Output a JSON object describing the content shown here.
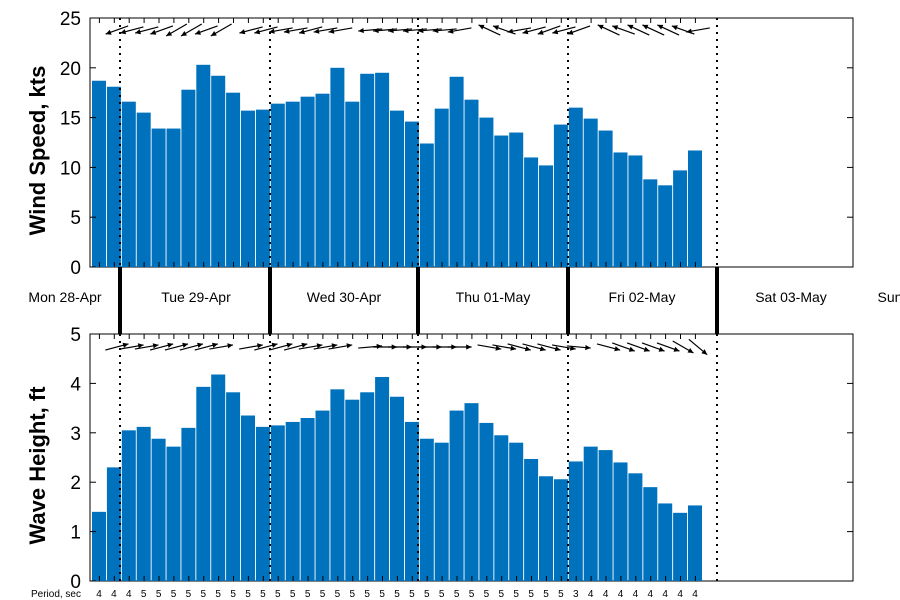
{
  "chart_data": [
    {
      "type": "bar",
      "ylabel": "Wind Speed, kts",
      "ylim": [
        0,
        25
      ],
      "yticks": [
        0,
        5,
        10,
        15,
        20,
        25
      ],
      "grid": false,
      "bar_color": "#0072bd",
      "values": [
        18.7,
        18.1,
        16.6,
        15.5,
        13.9,
        13.9,
        17.8,
        20.3,
        19.2,
        17.5,
        15.7,
        15.8,
        16.4,
        16.6,
        17.1,
        17.4,
        20.0,
        16.6,
        19.4,
        19.5,
        15.7,
        14.6,
        12.4,
        15.9,
        19.1,
        16.8,
        15.0,
        13.2,
        13.5,
        11.0,
        10.2,
        14.3,
        16.0,
        14.9,
        13.7,
        11.5,
        11.2,
        8.8,
        8.2,
        9.7,
        11.7
      ],
      "direction_arrows_deg": [
        null,
        200,
        195,
        195,
        200,
        210,
        210,
        200,
        210,
        null,
        195,
        195,
        190,
        190,
        195,
        190,
        190,
        null,
        185,
        185,
        185,
        185,
        185,
        185,
        190,
        null,
        155,
        160,
        190,
        195,
        200,
        195,
        200,
        null,
        155,
        160,
        155,
        155,
        155,
        160,
        190
      ]
    },
    {
      "type": "bar",
      "ylabel": "Wave Height, ft",
      "ylim": [
        0,
        5
      ],
      "yticks": [
        0,
        1,
        2,
        3,
        4,
        5
      ],
      "grid": false,
      "bar_color": "#0072bd",
      "values": [
        1.4,
        2.3,
        3.05,
        3.12,
        2.88,
        2.72,
        3.1,
        3.93,
        4.18,
        3.82,
        3.35,
        3.12,
        3.15,
        3.22,
        3.3,
        3.45,
        3.88,
        3.67,
        3.82,
        4.13,
        3.73,
        3.22,
        2.88,
        2.8,
        3.45,
        3.6,
        3.2,
        2.95,
        2.8,
        2.47,
        2.12,
        2.06,
        2.42,
        2.72,
        2.65,
        2.4,
        2.18,
        1.9,
        1.57,
        1.38,
        1.53
      ],
      "direction_arrows_deg": [
        null,
        15,
        10,
        10,
        15,
        15,
        15,
        15,
        10,
        null,
        10,
        15,
        15,
        15,
        10,
        10,
        10,
        null,
        5,
        0,
        0,
        0,
        0,
        0,
        0,
        null,
        -10,
        -10,
        -15,
        -15,
        -15,
        -10,
        -5,
        null,
        -15,
        -20,
        -20,
        -20,
        -20,
        -30,
        -40
      ]
    }
  ],
  "days": [
    "Mon 28-Apr",
    "Tue 29-Apr",
    "Wed 30-Apr",
    "Thu 01-May",
    "Fri 02-May",
    "Sat 03-May",
    "Sun"
  ],
  "period_label": "Period, sec",
  "periods": [
    4,
    4,
    4,
    5,
    5,
    5,
    5,
    5,
    5,
    5,
    5,
    5,
    5,
    5,
    5,
    5,
    5,
    5,
    5,
    5,
    5,
    5,
    5,
    5,
    5,
    5,
    5,
    5,
    5,
    5,
    5,
    5,
    3,
    4,
    4,
    4,
    4,
    4,
    4,
    4,
    4
  ]
}
